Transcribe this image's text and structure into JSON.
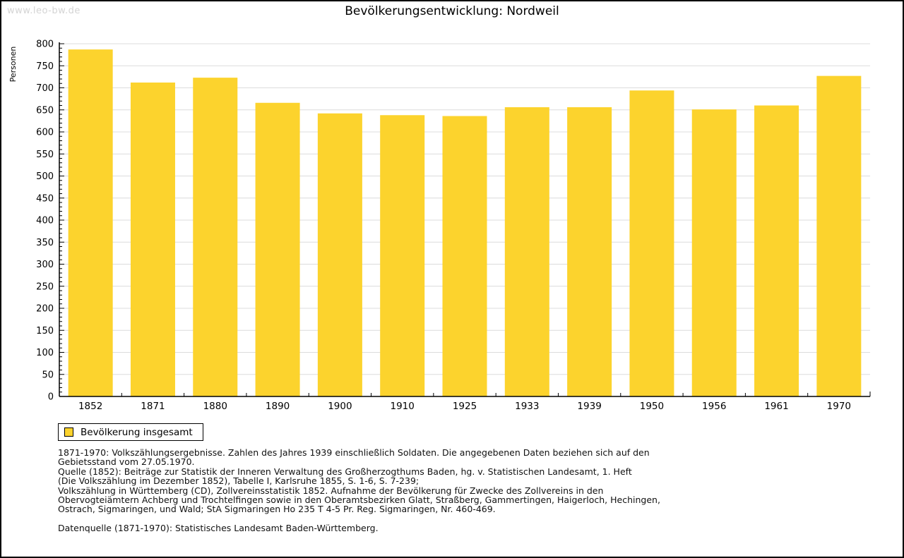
{
  "header": {
    "watermark": "www.leo-bw.de",
    "title": "Bevölkerungsentwicklung: Nordweil"
  },
  "chart_data": {
    "type": "bar",
    "title": "Bevölkerungsentwicklung: Nordweil",
    "xlabel": "",
    "ylabel": "Personen",
    "categories": [
      "1852",
      "1871",
      "1880",
      "1890",
      "1900",
      "1910",
      "1925",
      "1933",
      "1939",
      "1950",
      "1956",
      "1961",
      "1970"
    ],
    "series": [
      {
        "name": "Bevölkerung insgesamt",
        "values": [
          787,
          712,
          723,
          666,
          642,
          638,
          636,
          656,
          656,
          694,
          651,
          660,
          727
        ]
      }
    ],
    "ylim": [
      0,
      800
    ],
    "ytick_major": 50,
    "ytick_minor": 10,
    "grid": true,
    "legend_position": "bottom-left",
    "bar_color": "#FCD32D",
    "grid_color": "#DCDCDC",
    "axis_color": "#000000"
  },
  "legend": {
    "label": "Bevölkerung insgesamt",
    "swatch_color": "#FCD32D"
  },
  "footer": {
    "lines": [
      "1871-1970: Volkszählungsergebnisse. Zahlen des Jahres 1939 einschließlich Soldaten. Die angegebenen Daten beziehen sich auf den",
      "Gebietsstand vom 27.05.1970.",
      "Quelle (1852): Beiträge zur Statistik der Inneren Verwaltung des Großherzogthums Baden, hg. v. Statistischen Landesamt, 1. Heft",
      "(Die Volkszählung im Dezember 1852), Tabelle I, Karlsruhe 1855, S. 1-6, S. 7-239;",
      "Volkszählung in Württemberg (CD), Zollvereinsstatistik 1852. Aufnahme der Bevölkerung für Zwecke des Zollvereins in den",
      "Obervogteiämtern Achberg und Trochtelfingen sowie in den Oberamtsbezirken Glatt, Straßberg, Gammertingen, Haigerloch, Hechingen,",
      "Ostrach, Sigmaringen, und Wald; StA Sigmaringen Ho 235 T 4-5 Pr. Reg. Sigmaringen, Nr. 460-469."
    ],
    "datasource": "Datenquelle (1871-1970): Statistisches Landesamt Baden-Württemberg."
  }
}
